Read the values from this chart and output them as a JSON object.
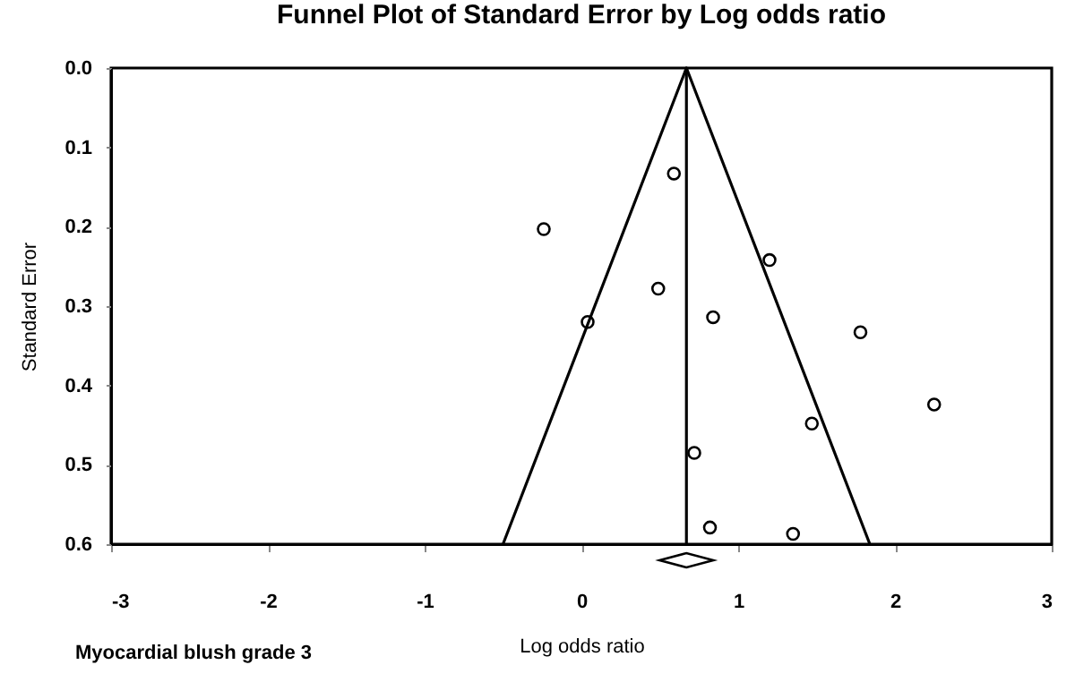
{
  "chart_data": {
    "type": "scatter",
    "title": "Funnel Plot of Standard Error by Log odds ratio",
    "xlabel": "Log odds ratio",
    "ylabel": "Standard Error",
    "annotations": [
      "Myocardial blush grade 3"
    ],
    "xlim": [
      -3,
      3
    ],
    "xticks": [
      -3,
      -2,
      -1,
      0,
      1,
      2,
      3
    ],
    "ylim": [
      0.6,
      0
    ],
    "yticks": [
      {
        "value": 0,
        "label": "0.0"
      },
      0.1,
      0.2,
      0.3,
      0.4,
      0.5,
      0.6
    ],
    "grid": false,
    "series": [
      {
        "marker": "circle",
        "color": "#000000",
        "x": [
          0.59,
          -0.24,
          1.2,
          0.49,
          0.04,
          0.84,
          1.78,
          2.25,
          1.47,
          0.72,
          0.82,
          1.35
        ],
        "values": [
          0.133,
          0.203,
          0.242,
          0.278,
          0.32,
          0.314,
          0.333,
          0.424,
          0.448,
          0.485,
          0.579,
          0.587
        ]
      },
      {
        "type": "line",
        "marker": "none",
        "color": "#000000",
        "x": [
          -0.5,
          0.67,
          1.84
        ],
        "values": [
          0.6,
          0,
          0.6
        ]
      }
    ],
    "ref_lines": [
      {
        "axis": "x",
        "value": 0.67,
        "color": "#000000"
      }
    ]
  }
}
